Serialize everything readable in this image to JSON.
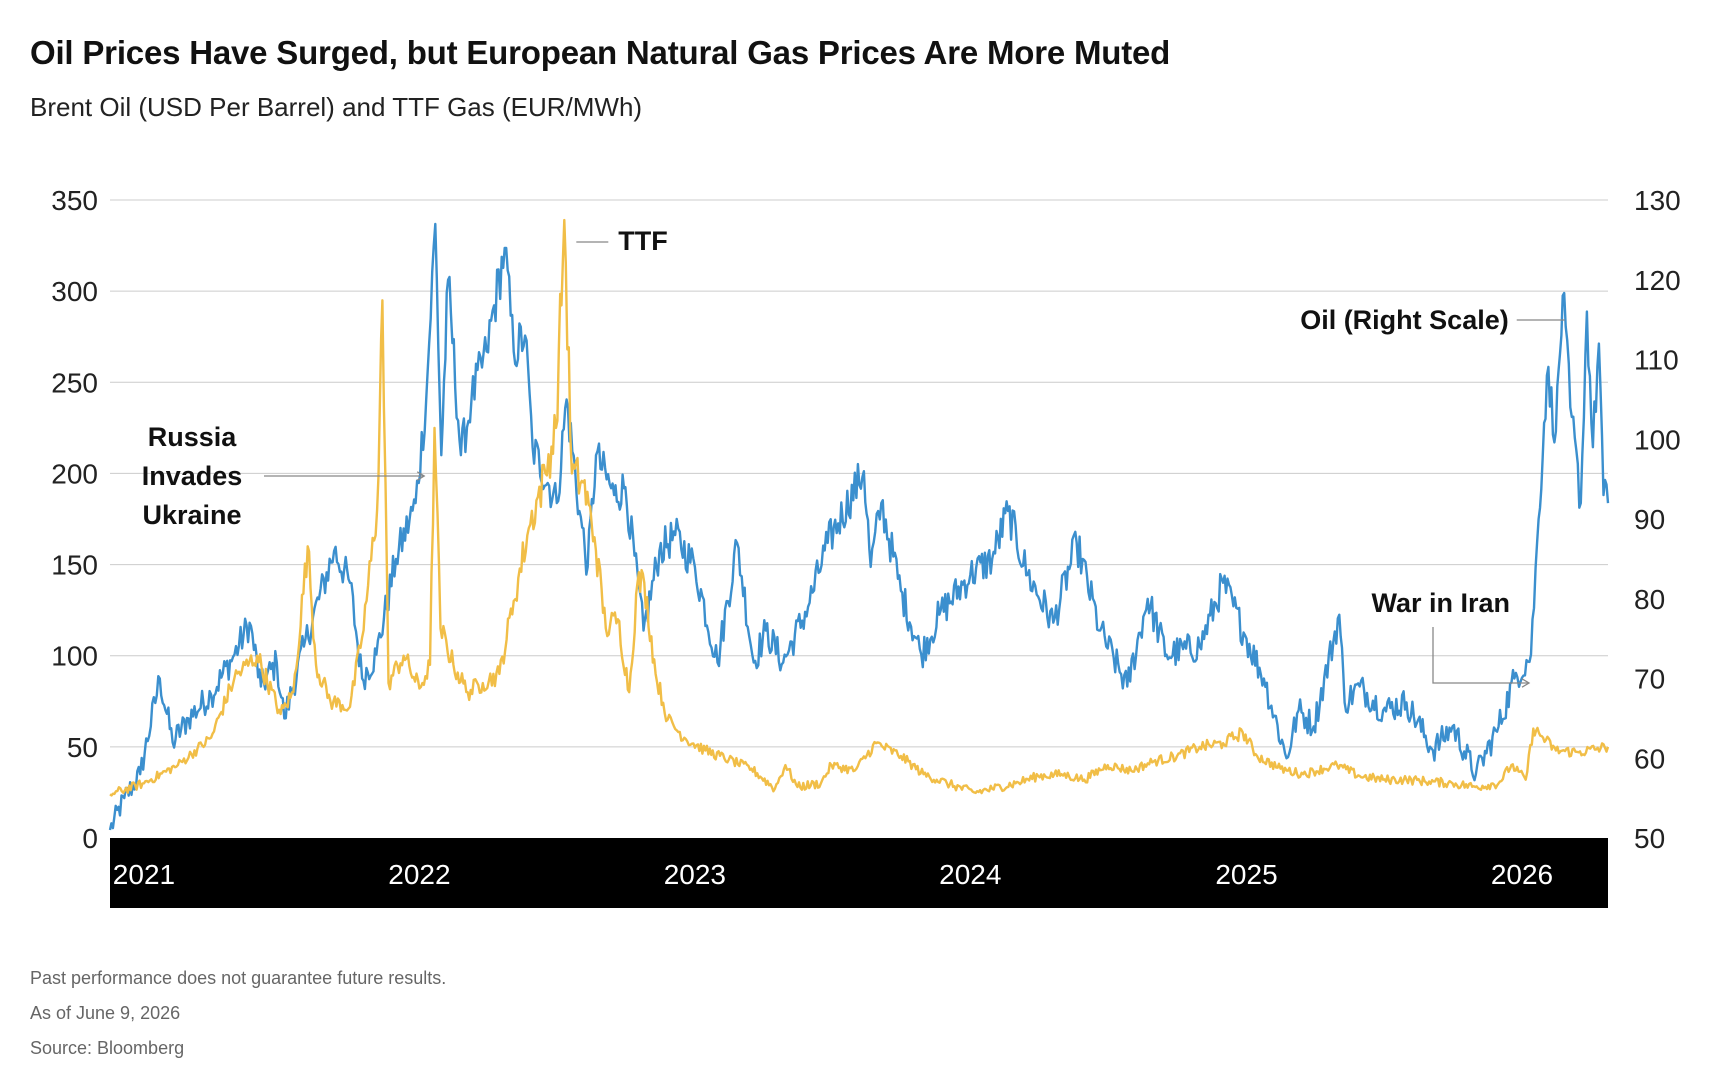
{
  "title": "Oil Prices Have Surged, but European Natural Gas Prices Are More Muted",
  "subtitle": "Brent Oil (USD Per Barrel) and TTF Gas (EUR/MWh)",
  "footer": {
    "disclaimer": "Past performance does not guarantee future results.",
    "as_of": "As of June 9, 2026",
    "source": "Source: Bloomberg"
  },
  "colors": {
    "oil": "#3b8fce",
    "gas": "#f1be47",
    "grid": "#cccccc",
    "axis_band": "#000000"
  },
  "chart_data": {
    "type": "line",
    "title": "Oil Prices Have Surged, but European Natural Gas Prices Are More Muted",
    "subtitle": "Brent Oil (USD Per Barrel) and TTF Gas (EUR/MWh)",
    "x_axis": {
      "type": "time",
      "range": [
        "2021-01-01",
        "2026-06-09"
      ],
      "tick_labels": [
        "2021",
        "2022",
        "2023",
        "2024",
        "2025",
        "2026"
      ]
    },
    "y_left": {
      "range": [
        0,
        350
      ],
      "ticks": [
        0,
        50,
        100,
        150,
        200,
        250,
        300,
        350
      ],
      "tick_labels": [
        "0",
        "50",
        "100",
        "150",
        "200",
        "250",
        "300",
        "350"
      ]
    },
    "y_right": {
      "range": [
        50,
        130
      ],
      "ticks": [
        50,
        60,
        70,
        80,
        90,
        100,
        110,
        120,
        130
      ],
      "tick_labels": [
        "50",
        "60",
        "70",
        "80",
        "90",
        "100",
        "110",
        "120",
        "130"
      ]
    },
    "grid": true,
    "legend": "none",
    "series": [
      {
        "name": "TTF",
        "axis": "left",
        "points": [
          [
            "2021-01-01",
            24
          ],
          [
            "2021-02-15",
            30
          ],
          [
            "2021-04-01",
            40
          ],
          [
            "2021-05-15",
            55
          ],
          [
            "2021-06-15",
            88
          ],
          [
            "2021-07-15",
            100
          ],
          [
            "2021-08-15",
            68
          ],
          [
            "2021-09-01",
            80
          ],
          [
            "2021-09-20",
            160
          ],
          [
            "2021-10-01",
            95
          ],
          [
            "2021-10-20",
            75
          ],
          [
            "2021-11-15",
            72
          ],
          [
            "2021-12-01",
            110
          ],
          [
            "2021-12-21",
            180
          ],
          [
            "2021-12-28",
            295
          ],
          [
            "2022-01-05",
            85
          ],
          [
            "2022-01-25",
            100
          ],
          [
            "2022-02-15",
            82
          ],
          [
            "2022-03-01",
            95
          ],
          [
            "2022-03-07",
            225
          ],
          [
            "2022-03-15",
            115
          ],
          [
            "2022-04-01",
            95
          ],
          [
            "2022-04-20",
            80
          ],
          [
            "2022-05-10",
            85
          ],
          [
            "2022-06-01",
            90
          ],
          [
            "2022-06-20",
            130
          ],
          [
            "2022-07-10",
            170
          ],
          [
            "2022-08-01",
            200
          ],
          [
            "2022-08-15",
            225
          ],
          [
            "2022-08-26",
            339
          ],
          [
            "2022-09-05",
            200
          ],
          [
            "2022-09-20",
            195
          ],
          [
            "2022-10-05",
            165
          ],
          [
            "2022-10-20",
            115
          ],
          [
            "2022-11-05",
            120
          ],
          [
            "2022-11-20",
            80
          ],
          [
            "2022-12-01",
            140
          ],
          [
            "2022-12-10",
            140
          ],
          [
            "2022-12-25",
            90
          ],
          [
            "2023-01-10",
            65
          ],
          [
            "2023-02-01",
            55
          ],
          [
            "2023-03-01",
            48
          ],
          [
            "2023-04-01",
            43
          ],
          [
            "2023-05-01",
            38
          ],
          [
            "2023-06-01",
            27
          ],
          [
            "2023-06-15",
            40
          ],
          [
            "2023-07-01",
            28
          ],
          [
            "2023-08-01",
            30
          ],
          [
            "2023-08-15",
            40
          ],
          [
            "2023-09-15",
            37
          ],
          [
            "2023-10-13",
            52
          ],
          [
            "2023-11-15",
            45
          ],
          [
            "2023-12-15",
            35
          ],
          [
            "2024-01-15",
            30
          ],
          [
            "2024-02-20",
            25
          ],
          [
            "2024-03-15",
            27
          ],
          [
            "2024-04-15",
            30
          ],
          [
            "2024-05-15",
            34
          ],
          [
            "2024-06-15",
            35
          ],
          [
            "2024-07-15",
            32
          ],
          [
            "2024-08-15",
            40
          ],
          [
            "2024-09-15",
            37
          ],
          [
            "2024-10-15",
            42
          ],
          [
            "2024-11-15",
            45
          ],
          [
            "2024-12-15",
            50
          ],
          [
            "2025-01-15",
            52
          ],
          [
            "2025-02-10",
            58
          ],
          [
            "2025-03-01",
            45
          ],
          [
            "2025-04-01",
            38
          ],
          [
            "2025-05-01",
            35
          ],
          [
            "2025-06-15",
            40
          ],
          [
            "2025-07-15",
            34
          ],
          [
            "2025-08-15",
            32
          ],
          [
            "2025-09-15",
            32
          ],
          [
            "2025-10-15",
            31
          ],
          [
            "2025-11-15",
            30
          ],
          [
            "2025-12-15",
            28
          ],
          [
            "2026-01-15",
            30
          ],
          [
            "2026-02-01",
            40
          ],
          [
            "2026-02-20",
            32
          ],
          [
            "2026-03-02",
            60
          ],
          [
            "2026-03-15",
            55
          ],
          [
            "2026-04-01",
            48
          ],
          [
            "2026-05-01",
            47
          ],
          [
            "2026-06-09",
            50
          ]
        ]
      },
      {
        "name": "Oil (Right Scale)",
        "axis": "right",
        "points": [
          [
            "2021-01-01",
            51
          ],
          [
            "2021-01-20",
            55
          ],
          [
            "2021-02-10",
            58
          ],
          [
            "2021-03-08",
            70
          ],
          [
            "2021-03-25",
            62
          ],
          [
            "2021-04-15",
            65
          ],
          [
            "2021-05-15",
            68
          ],
          [
            "2021-06-15",
            73
          ],
          [
            "2021-07-05",
            77
          ],
          [
            "2021-07-20",
            69
          ],
          [
            "2021-08-10",
            72
          ],
          [
            "2021-08-20",
            65
          ],
          [
            "2021-09-15",
            74
          ],
          [
            "2021-10-25",
            86
          ],
          [
            "2021-11-15",
            82
          ],
          [
            "2021-12-01",
            70
          ],
          [
            "2021-12-20",
            73
          ],
          [
            "2022-01-15",
            85
          ],
          [
            "2022-02-10",
            92
          ],
          [
            "2022-02-24",
            105
          ],
          [
            "2022-03-08",
            127
          ],
          [
            "2022-03-16",
            98
          ],
          [
            "2022-03-25",
            120
          ],
          [
            "2022-04-11",
            98
          ],
          [
            "2022-04-25",
            105
          ],
          [
            "2022-05-15",
            111
          ],
          [
            "2022-06-08",
            124
          ],
          [
            "2022-06-20",
            111
          ],
          [
            "2022-07-05",
            113
          ],
          [
            "2022-07-15",
            99
          ],
          [
            "2022-08-16",
            92
          ],
          [
            "2022-08-29",
            105
          ],
          [
            "2022-09-15",
            91
          ],
          [
            "2022-09-26",
            84
          ],
          [
            "2022-10-07",
            98
          ],
          [
            "2022-10-31",
            93
          ],
          [
            "2022-11-15",
            94
          ],
          [
            "2022-12-09",
            76
          ],
          [
            "2022-12-30",
            86
          ],
          [
            "2023-01-20",
            88
          ],
          [
            "2023-02-15",
            84
          ],
          [
            "2023-03-17",
            72
          ],
          [
            "2023-04-12",
            87
          ],
          [
            "2023-05-04",
            72
          ],
          [
            "2023-05-20",
            76
          ],
          [
            "2023-06-12",
            72
          ],
          [
            "2023-07-15",
            79
          ],
          [
            "2023-08-10",
            87
          ],
          [
            "2023-09-27",
            96
          ],
          [
            "2023-10-06",
            84
          ],
          [
            "2023-10-20",
            92
          ],
          [
            "2023-11-15",
            81
          ],
          [
            "2023-12-12",
            73
          ],
          [
            "2024-01-05",
            78
          ],
          [
            "2024-02-15",
            83
          ],
          [
            "2024-03-15",
            85
          ],
          [
            "2024-04-05",
            91
          ],
          [
            "2024-05-01",
            83
          ],
          [
            "2024-06-04",
            77
          ],
          [
            "2024-07-05",
            87
          ],
          [
            "2024-08-05",
            76
          ],
          [
            "2024-09-10",
            69
          ],
          [
            "2024-10-07",
            80
          ],
          [
            "2024-11-01",
            73
          ],
          [
            "2024-12-15",
            74
          ],
          [
            "2025-01-15",
            82
          ],
          [
            "2025-02-15",
            75
          ],
          [
            "2025-03-10",
            70
          ],
          [
            "2025-04-09",
            60
          ],
          [
            "2025-04-25",
            66
          ],
          [
            "2025-05-15",
            64
          ],
          [
            "2025-06-18",
            78
          ],
          [
            "2025-06-25",
            67
          ],
          [
            "2025-07-15",
            69
          ],
          [
            "2025-08-15",
            66
          ],
          [
            "2025-09-15",
            67
          ],
          [
            "2025-10-20",
            61
          ],
          [
            "2025-11-15",
            64
          ],
          [
            "2025-12-16",
            58
          ],
          [
            "2026-01-15",
            64
          ],
          [
            "2026-02-05",
            70
          ],
          [
            "2026-02-27",
            73
          ],
          [
            "2026-03-09",
            90
          ],
          [
            "2026-03-20",
            108
          ],
          [
            "2026-04-01",
            101
          ],
          [
            "2026-04-10",
            118
          ],
          [
            "2026-04-20",
            104
          ],
          [
            "2026-05-04",
            92
          ],
          [
            "2026-05-12",
            116
          ],
          [
            "2026-05-20",
            99
          ],
          [
            "2026-05-28",
            112
          ],
          [
            "2026-06-03",
            93
          ],
          [
            "2026-06-09",
            92
          ]
        ]
      }
    ],
    "annotations": [
      {
        "text": [
          "Russia",
          "Invades",
          "Ukraine"
        ],
        "date": "2022-02-24"
      },
      {
        "text": [
          "TTF"
        ],
        "date": "2022-08-26",
        "series": "TTF"
      },
      {
        "text": [
          "Oil (Right Scale)"
        ],
        "date": "2026-04-10",
        "series": "Oil (Right Scale)"
      },
      {
        "text": [
          "War in Iran"
        ],
        "date": "2026-02-27"
      }
    ]
  }
}
